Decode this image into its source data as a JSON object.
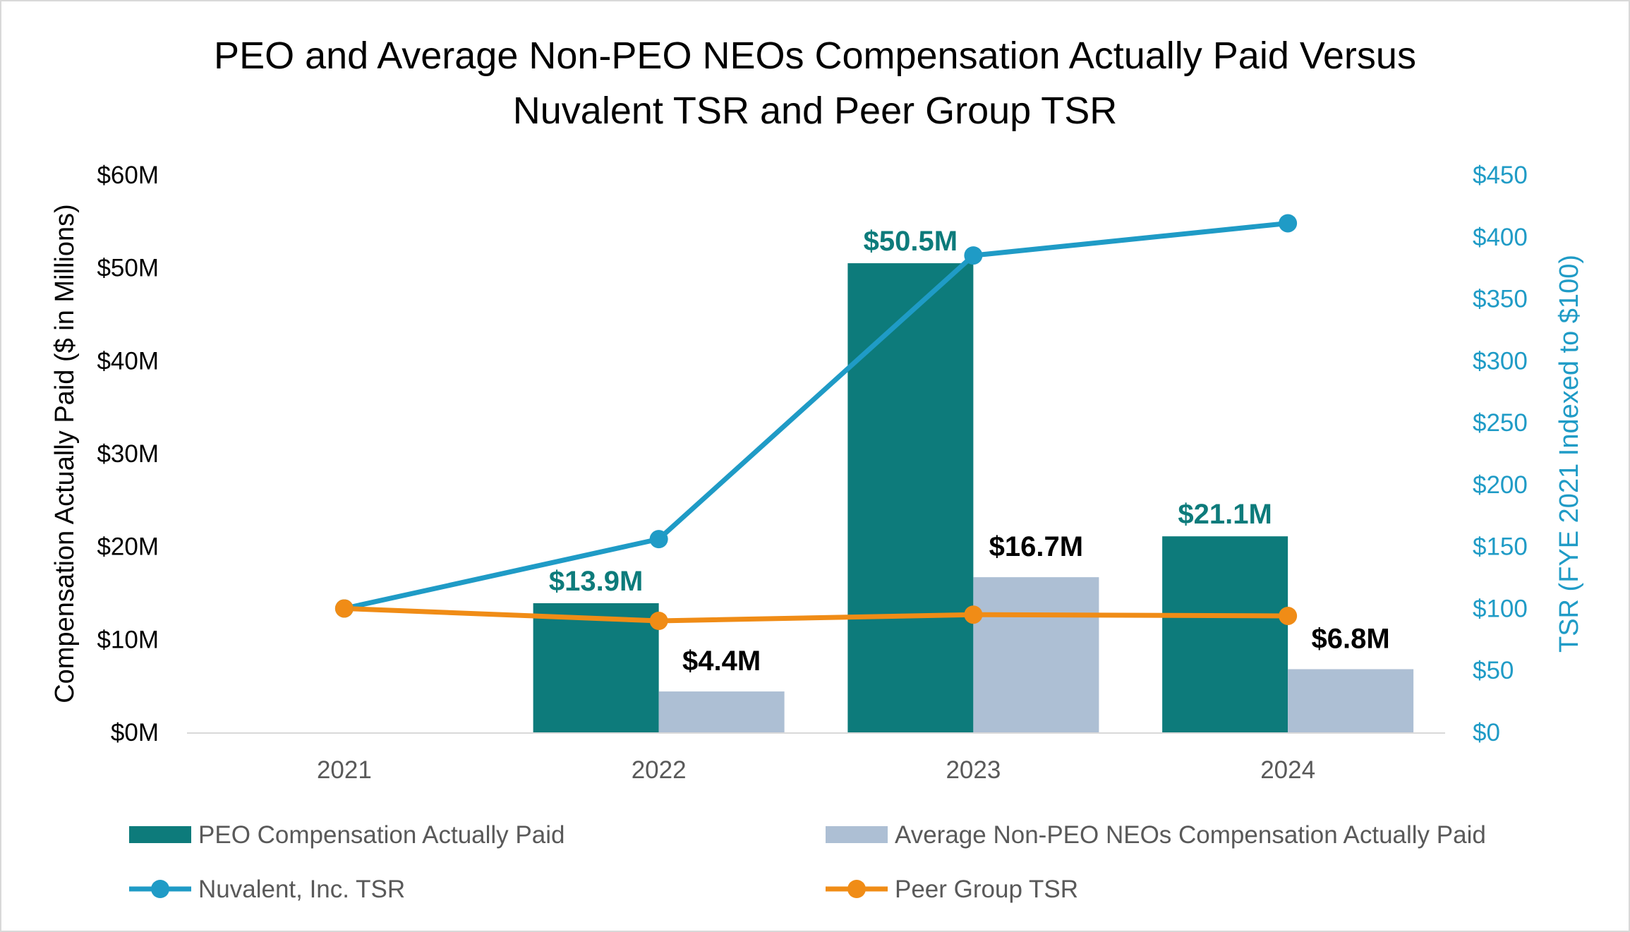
{
  "chart_data": {
    "type": "bar+line",
    "title_lines": [
      "PEO and Average Non-PEO NEOs Compensation Actually Paid Versus",
      "Nuvalent TSR and Peer Group TSR"
    ],
    "categories": [
      "2021",
      "2022",
      "2023",
      "2024"
    ],
    "ylabel": "Compensation Actually Paid ($ in Millions)",
    "ylabel_right": "TSR (FYE 2021 Indexed to $100)",
    "ylim": [
      0,
      60
    ],
    "ylim_right": [
      0,
      450
    ],
    "y_ticks": [
      "$0M",
      "$10M",
      "$20M",
      "$30M",
      "$40M",
      "$50M",
      "$60M"
    ],
    "y_ticks_right": [
      "$0",
      "$50",
      "$100",
      "$150",
      "$200",
      "$250",
      "$300",
      "$350",
      "$400",
      "$450"
    ],
    "bar_series": [
      {
        "name": "PEO Compensation Actually Paid",
        "color": "#0d7b7b",
        "label_color": "#0d7b7b",
        "values": [
          null,
          13.9,
          50.5,
          21.1
        ],
        "labels": [
          "",
          "$13.9M",
          "$50.5M",
          "$21.1M"
        ]
      },
      {
        "name": "Average Non-PEO NEOs Compensation Actually Paid",
        "color": "#adbfd4",
        "label_color": "#000000",
        "values": [
          null,
          4.4,
          16.7,
          6.8
        ],
        "labels": [
          "",
          "$4.4M",
          "$16.7M",
          "$6.8M"
        ]
      }
    ],
    "line_series": [
      {
        "name": "Nuvalent, Inc. TSR",
        "color": "#1f9bc6",
        "axis": "right",
        "values": [
          100,
          156,
          385,
          411
        ]
      },
      {
        "name": "Peer Group TSR",
        "color": "#f08c16",
        "axis": "right",
        "values": [
          100,
          90,
          95,
          94
        ]
      }
    ],
    "grid": false,
    "legend_position": "bottom"
  }
}
